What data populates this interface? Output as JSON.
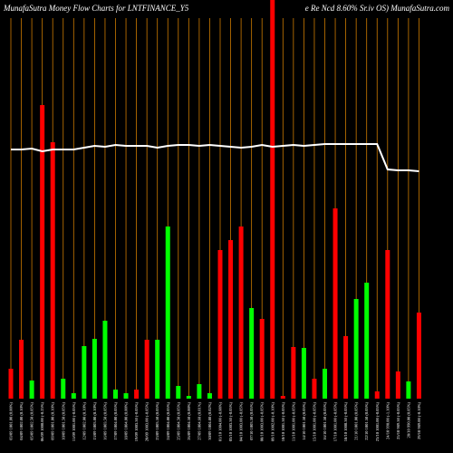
{
  "chart_data": {
    "type": "bar",
    "title": "MunafaSutra  Money Flow  Charts for LNTFINANCE_Y5",
    "title_right": "e  Re    Ncd 8.60% Sr.iv    OS) MunafaSutra.com",
    "categories": [
      "03/09 1001.00 (0.00%)",
      "04/09 1002.00 (0.10%)",
      "05/09 1002.50 (0.05%)",
      "06/09 1000.00 (-0.25%)",
      "09/09 1001.00 (0.10%)",
      "10/09 1001.50 (0.05%)",
      "11/09 1001.00 (-0.05%)",
      "12/09 1002.00 (0.10%)",
      "13/09 1003.00 (0.10%)",
      "16/09 1003.50 (0.05%)",
      "17/09 1004.00 (0.05%)",
      "18/09 1004.00 (0.00%)",
      "19/09 1003.50 (-0.05%)",
      "20/09 1003.00 (-0.05%)",
      "23/09 1003.50 (0.05%)",
      "24/09 1004.00 (0.05%)",
      "25/09 1004.50 (0.05%)",
      "26/09 1004.50 (0.00%)",
      "27/09 1004.60 (0.01%)",
      "30/09 1004.80 (0.02%)",
      "01/10 1004.00 (-0.08%)",
      "03/10 1003.50 (-0.05%)",
      "04/10 1003.00 (-0.05%)",
      "07/10 1003.50 (0.05%)",
      "08/10 1003.00 (-0.05%)",
      "09/10 1002.00 (-0.10%)",
      "10/10 1001.50 (-0.05%)",
      "11/10 1001.00 (-0.05%)",
      "14/10 1001.50 (0.05%)",
      "15/10 1001.00 (-0.05%)",
      "16/10 1001.50 (0.05%)",
      "17/10 1001.00 (-0.05%)",
      "18/10 1000.50 (-0.05%)",
      "21/10 1001.00 (0.05%)",
      "22/10 1001.50 (0.05%)",
      "23/10 1001.00 (-0.05%)",
      "24/10 990.00 (-1.10%)",
      "25/10 989.50 (-0.05%)",
      "28/10 990.00 (0.05%)",
      "29/10 989.00 (-0.10%)"
    ],
    "series": [
      {
        "values": [
          33,
          65,
          20,
          324,
          283,
          22,
          6,
          58,
          66,
          86,
          10,
          6,
          10,
          65,
          65,
          190,
          14,
          3,
          16,
          6,
          164,
          175,
          190,
          100,
          88,
          440,
          3,
          57,
          56,
          22,
          33,
          210,
          69,
          110,
          128,
          8,
          164,
          30,
          19,
          95
        ],
        "colors": [
          "#ff0000",
          "#ff0000",
          "#00ff00",
          "#ff0000",
          "#ff0000",
          "#00ff00",
          "#00ff00",
          "#00ff00",
          "#00ff00",
          "#00ff00",
          "#00ff00",
          "#00ff00",
          "#ff0000",
          "#ff0000",
          "#00ff00",
          "#00ff00",
          "#00ff00",
          "#00ff00",
          "#00ff00",
          "#00ff00",
          "#ff0000",
          "#ff0000",
          "#ff0000",
          "#00ff00",
          "#ff0000",
          "#ff0000",
          "#ff0000",
          "#ff0000",
          "#00ff00",
          "#ff0000",
          "#00ff00",
          "#ff0000",
          "#ff0000",
          "#00ff00",
          "#00ff00",
          "#ff0000",
          "#ff0000",
          "#ff0000",
          "#00ff00",
          "#ff0000"
        ]
      },
      {
        "type": "line",
        "color": "#ffffff",
        "values": [
          275,
          275,
          276,
          273,
          275,
          275,
          275,
          277,
          279,
          278,
          280,
          279,
          279,
          279,
          277,
          279,
          280,
          280,
          279,
          280,
          279,
          278,
          277,
          278,
          280,
          278,
          279,
          280,
          279,
          280,
          281,
          281,
          281,
          281,
          281,
          281,
          253,
          252,
          252,
          251
        ]
      }
    ],
    "ylim": [
      0,
      440
    ],
    "gridline_color": "#cc7a00"
  }
}
